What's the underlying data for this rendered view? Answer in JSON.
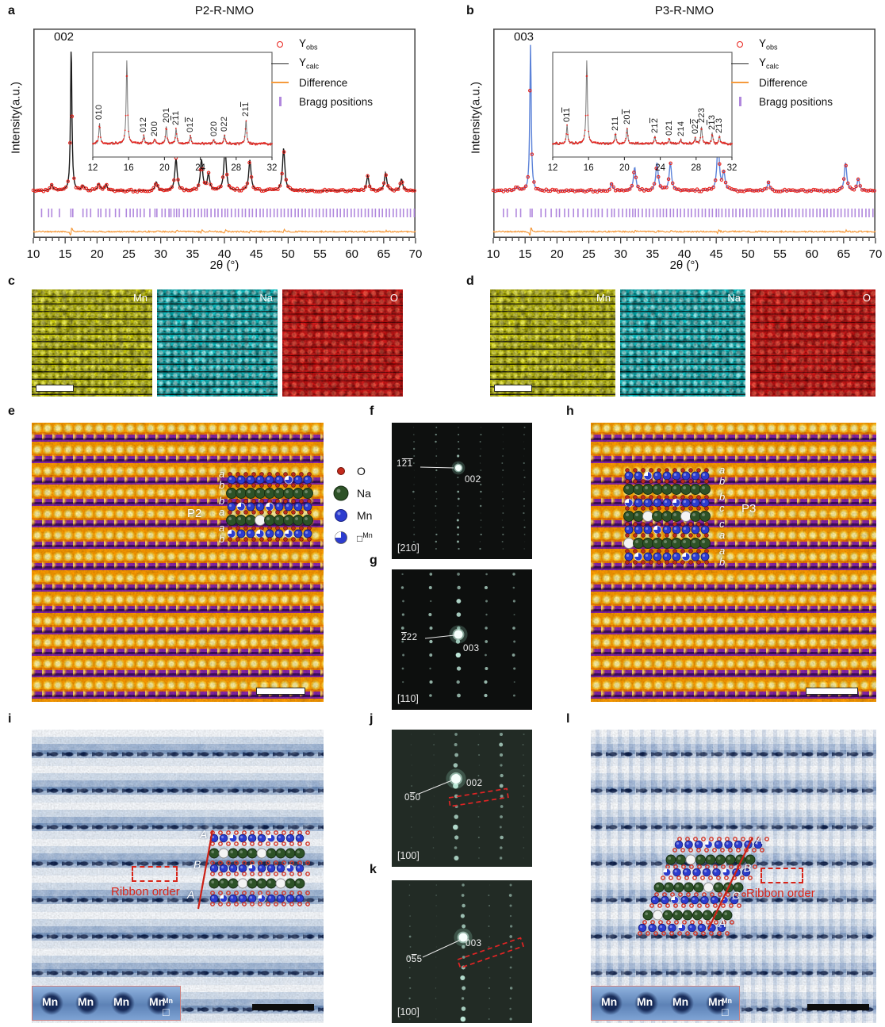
{
  "panel_letters": {
    "a": "a",
    "b": "b",
    "c": "c",
    "d": "d",
    "e": "e",
    "f": "f",
    "g": "g",
    "h": "h",
    "i": "i",
    "j": "j",
    "k": "k",
    "l": "l"
  },
  "colors": {
    "obs": "#e8231d",
    "calc_a": "#1a1a1a",
    "calc_b": "#5b82d8",
    "difference": "#f59a3c",
    "bragg": "#b087dd",
    "map_mn": "#d9d900",
    "map_na": "#00cdd1",
    "map_o": "#df1313",
    "atom_o": "#c42a1c",
    "atom_na": "#2d5227",
    "atom_mn": "#2c3ccf",
    "ribbon": "#d8261a"
  },
  "chart_data": [
    {
      "type": "line",
      "panel": "a",
      "title": "P2-R-NMO",
      "xlabel": "2θ (°)",
      "ylabel": "Intensity(a.u.)",
      "xlim": [
        10,
        70
      ],
      "x_ticks": [
        10,
        15,
        20,
        25,
        30,
        35,
        40,
        45,
        50,
        55,
        60,
        65,
        70
      ],
      "main_peak_label": "002",
      "calc_color": "#1a1a1a",
      "legend": [
        {
          "marker": "open-circle",
          "base": "Y",
          "sub": "obs"
        },
        {
          "marker": "line-dark",
          "base": "Y",
          "sub": "calc"
        },
        {
          "marker": "line-orange",
          "label": "Difference"
        },
        {
          "marker": "tick-purple",
          "label": "Bragg positions"
        }
      ],
      "peaks": [
        [
          12.9,
          0.04
        ],
        [
          15.95,
          1.0
        ],
        [
          17.8,
          0.035
        ],
        [
          20.3,
          0.05
        ],
        [
          21.4,
          0.045
        ],
        [
          29.3,
          0.06
        ],
        [
          32.4,
          0.22
        ],
        [
          36.4,
          0.21
        ],
        [
          37.5,
          0.11
        ],
        [
          40.1,
          0.3
        ],
        [
          44.0,
          0.21
        ],
        [
          49.3,
          0.29
        ],
        [
          62.5,
          0.1
        ],
        [
          65.3,
          0.12
        ],
        [
          67.8,
          0.08
        ]
      ],
      "bragg_ticks": [
        11.3,
        12.4,
        12.9,
        14.1,
        15.9,
        16.2,
        17.8,
        18.4,
        19.0,
        20.2,
        20.6,
        21.4,
        22.0,
        22.9,
        23.5,
        24.6,
        25.2,
        25.7,
        26.3,
        26.8,
        27.4,
        28.3,
        29.1,
        29.4,
        30.2,
        30.7,
        31.3,
        31.6,
        32.1,
        32.5,
        32.9,
        33.6,
        34.2,
        34.7,
        35.3,
        35.9,
        36.4,
        36.9,
        37.3,
        37.9,
        38.5,
        39.0,
        39.6,
        40.1,
        40.5,
        41.1,
        41.7,
        42.2,
        42.8,
        43.3,
        43.9,
        44.4,
        45.0,
        45.6,
        46.1,
        46.7,
        47.2,
        47.8,
        48.3,
        48.9,
        49.4,
        50.0,
        50.5,
        51.1,
        51.6,
        52.2,
        52.7,
        53.3,
        53.8,
        54.4,
        54.9,
        55.5,
        56.0,
        56.6,
        57.1,
        57.7,
        58.2,
        58.8,
        59.3,
        59.9,
        60.4,
        61.0,
        61.5,
        62.1,
        62.6,
        63.2,
        63.7,
        64.3,
        64.8,
        65.4,
        65.9,
        66.5,
        67.0,
        67.6,
        68.1,
        68.7,
        69.2,
        69.8
      ],
      "inset": {
        "xlim": [
          12,
          32
        ],
        "x_ticks": [
          12,
          16,
          20,
          24,
          28,
          32
        ],
        "peaks": [
          {
            "x": 12.75,
            "h": 0.33,
            "label": {
              "text": "010",
              "bars": []
            }
          },
          {
            "x": 15.8,
            "h": 1.35
          },
          {
            "x": 17.7,
            "h": 0.13,
            "label": {
              "text": "012",
              "bars": []
            }
          },
          {
            "x": 18.9,
            "h": 0.07,
            "label": {
              "text": "200",
              "bars": []
            }
          },
          {
            "x": 20.2,
            "h": 0.28,
            "label": {
              "text": "201",
              "bars": []
            }
          },
          {
            "x": 21.3,
            "h": 0.24,
            "label": {
              "text": "211",
              "bars": [
                1
              ]
            }
          },
          {
            "x": 22.9,
            "h": 0.13,
            "label": {
              "text": "012",
              "bars": [
                2
              ]
            }
          },
          {
            "x": 25.5,
            "h": 0.06,
            "label": {
              "text": "020",
              "bars": []
            }
          },
          {
            "x": 26.7,
            "h": 0.14,
            "label": {
              "text": "022",
              "bars": []
            }
          },
          {
            "x": 29.1,
            "h": 0.38,
            "label": {
              "text": "211",
              "bars": [
                2
              ]
            }
          }
        ]
      }
    },
    {
      "type": "line",
      "panel": "b",
      "title": "P3-R-NMO",
      "xlabel": "2θ (°)",
      "ylabel": "Intensity(a.u.)",
      "xlim": [
        10,
        70
      ],
      "x_ticks": [
        10,
        15,
        20,
        25,
        30,
        35,
        40,
        45,
        50,
        55,
        60,
        65,
        70
      ],
      "main_peak_label": "003",
      "calc_color": "#5b82d8",
      "legend": [
        {
          "marker": "open-circle",
          "base": "Y",
          "sub": "obs"
        },
        {
          "marker": "line-dark",
          "base": "Y",
          "sub": "calc"
        },
        {
          "marker": "line-orange",
          "label": "Difference"
        },
        {
          "marker": "tick-purple",
          "label": "Bragg positions"
        }
      ],
      "peaks": [
        [
          13.7,
          0.025
        ],
        [
          15.85,
          1.0
        ],
        [
          28.6,
          0.05
        ],
        [
          32.2,
          0.16
        ],
        [
          35.7,
          0.19
        ],
        [
          37.8,
          0.19
        ],
        [
          45.3,
          0.33
        ],
        [
          46.2,
          0.12
        ],
        [
          53.2,
          0.06
        ],
        [
          65.3,
          0.19
        ],
        [
          67.3,
          0.08
        ]
      ],
      "bragg_ticks": [
        11.6,
        12.2,
        13.6,
        14.3,
        15.8,
        16.1,
        17.5,
        18.2,
        19.1,
        19.9,
        20.4,
        21.2,
        21.8,
        22.6,
        23.3,
        24.1,
        24.8,
        25.4,
        26.0,
        26.5,
        27.1,
        27.9,
        28.6,
        29.0,
        29.7,
        30.3,
        30.9,
        31.4,
        31.9,
        32.3,
        32.8,
        33.4,
        34.0,
        34.5,
        35.1,
        35.7,
        36.2,
        36.7,
        37.2,
        37.8,
        38.3,
        38.9,
        39.4,
        40.0,
        40.6,
        41.1,
        41.7,
        42.2,
        42.8,
        43.3,
        43.9,
        44.4,
        45.0,
        45.4,
        45.9,
        46.5,
        47.0,
        47.6,
        48.1,
        48.7,
        49.2,
        49.8,
        50.3,
        50.9,
        51.4,
        52.0,
        52.5,
        53.1,
        53.6,
        54.2,
        54.7,
        55.3,
        55.8,
        56.4,
        56.9,
        57.5,
        58.0,
        58.6,
        59.1,
        59.7,
        60.2,
        60.8,
        61.3,
        61.9,
        62.4,
        63.0,
        63.5,
        64.1,
        64.6,
        65.2,
        65.7,
        66.3,
        66.8,
        67.4,
        67.9,
        68.5,
        69.0,
        69.6
      ],
      "inset": {
        "xlim": [
          12,
          32
        ],
        "x_ticks": [
          12,
          16,
          20,
          24,
          28,
          32
        ],
        "peaks": [
          {
            "x": 13.6,
            "h": 0.3,
            "label": {
              "text": "011",
              "bars": [
                2
              ]
            }
          },
          {
            "x": 15.8,
            "h": 1.35
          },
          {
            "x": 19.0,
            "h": 0.16,
            "label": {
              "text": "211",
              "bars": []
            }
          },
          {
            "x": 20.3,
            "h": 0.26,
            "label": {
              "text": "201",
              "bars": [
                2
              ]
            }
          },
          {
            "x": 23.4,
            "h": 0.12,
            "label": {
              "text": "212",
              "bars": [
                2
              ]
            }
          },
          {
            "x": 25.0,
            "h": 0.08,
            "label": {
              "text": "021",
              "bars": []
            }
          },
          {
            "x": 26.3,
            "h": 0.07,
            "label": {
              "text": "214",
              "bars": []
            }
          },
          {
            "x": 27.9,
            "h": 0.1,
            "label": {
              "text": "022",
              "bars": [
                2
              ]
            }
          },
          {
            "x": 28.6,
            "h": 0.28,
            "label": {
              "text": "223",
              "bars": []
            }
          },
          {
            "x": 29.8,
            "h": 0.17,
            "label": {
              "text": "213",
              "bars": [
                1
              ]
            }
          },
          {
            "x": 30.6,
            "h": 0.12,
            "label": {
              "text": "213",
              "bars": []
            }
          }
        ]
      }
    }
  ],
  "eds": {
    "c": {
      "maps": [
        {
          "label": "Mn"
        },
        {
          "label": "Na"
        },
        {
          "label": "O"
        }
      ]
    },
    "d": {
      "maps": [
        {
          "label": "Mn"
        },
        {
          "label": "Na"
        },
        {
          "label": "O"
        }
      ]
    }
  },
  "atom_legend": {
    "o": {
      "label": "O"
    },
    "na": {
      "label": "Na"
    },
    "mn": {
      "label": "Mn"
    },
    "vacancy": {
      "base": "□",
      "sup": "Mn"
    }
  },
  "stem": {
    "e": {
      "phase": "P2",
      "stack_letters": [
        "a",
        "b",
        "b",
        "a",
        "a",
        "b"
      ]
    },
    "h": {
      "phase": "P3",
      "stack_letters": [
        "a",
        "b",
        "b",
        "c",
        "c",
        "a",
        "a",
        "b"
      ]
    },
    "i": {
      "ribbon": "Ribbon order",
      "stack_letters": [
        "A",
        "B",
        "A"
      ],
      "mn_inset": {
        "labels": [
          "Mn",
          "Mn",
          "Mn",
          "Mn"
        ],
        "vacancy": {
          "base": "□",
          "sup": "Mn"
        }
      }
    },
    "l": {
      "ribbon": "Ribbon order",
      "stack_letters": [
        "A",
        "B",
        "C",
        "A"
      ],
      "mn_inset": {
        "labels": [
          "Mn",
          "Mn",
          "Mn",
          "Mn"
        ],
        "vacancy": {
          "base": "□",
          "sup": "Mn"
        }
      }
    }
  },
  "saed": {
    "f": {
      "zone": "[210]",
      "reflections": [
        {
          "text": "121",
          "bars": [
            1,
            2
          ]
        },
        {
          "text": "002",
          "bars": []
        }
      ]
    },
    "g": {
      "zone": "[110]",
      "reflections": [
        {
          "text": "222",
          "bars": [
            0
          ]
        },
        {
          "text": "003",
          "bars": []
        }
      ]
    },
    "j": {
      "zone": "[100]",
      "reflections": [
        {
          "text": "050",
          "bars": [
            1
          ]
        },
        {
          "text": "002",
          "bars": []
        }
      ]
    },
    "k": {
      "zone": "[100]",
      "reflections": [
        {
          "text": "055",
          "bars": [
            1
          ]
        },
        {
          "text": "003",
          "bars": []
        }
      ]
    }
  }
}
